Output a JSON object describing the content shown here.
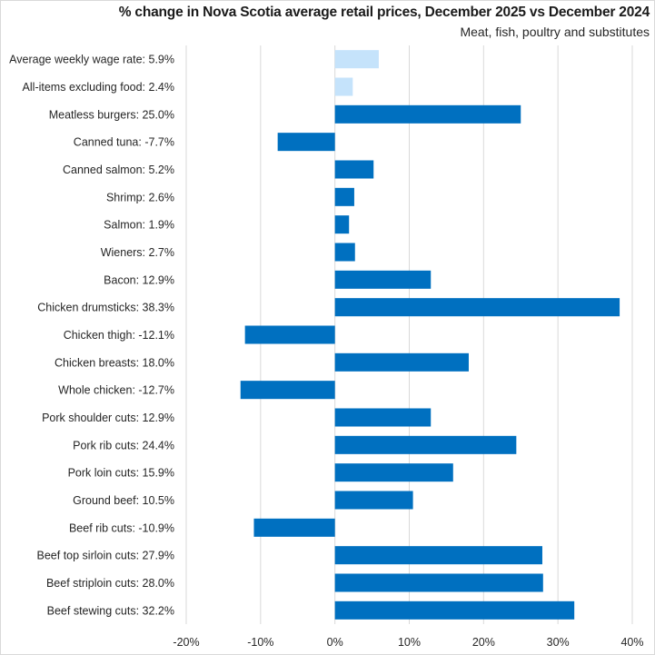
{
  "chart_data": {
    "type": "bar",
    "orientation": "horizontal",
    "title": "% change in Nova Scotia average retail prices, December 2025 vs December 2024",
    "subtitle": "Meat, fish, poultry and substitutes",
    "xlabel": "",
    "ylabel": "",
    "xlim": [
      -20,
      40
    ],
    "xticks": [
      -20,
      -10,
      0,
      10,
      20,
      30,
      40
    ],
    "xtick_labels": [
      "-20%",
      "-10%",
      "0%",
      "10%",
      "20%",
      "30%",
      "40%"
    ],
    "grid": "vertical",
    "legend": "none",
    "colors": {
      "reference": "#c5e3fb",
      "item": "#0070c0",
      "grid": "#d9d9d9"
    },
    "categories": [
      "Average weekly wage rate: 5.9%",
      "All-items excluding food: 2.4%",
      "Meatless burgers: 25.0%",
      "Canned tuna: -7.7%",
      "Canned salmon: 5.2%",
      "Shrimp: 2.6%",
      "Salmon: 1.9%",
      "Wieners: 2.7%",
      "Bacon: 12.9%",
      "Chicken drumsticks: 38.3%",
      "Chicken thigh: -12.1%",
      "Chicken breasts: 18.0%",
      "Whole chicken: -12.7%",
      "Pork shoulder cuts: 12.9%",
      "Pork rib cuts: 24.4%",
      "Pork loin cuts: 15.9%",
      "Ground beef: 10.5%",
      "Beef rib cuts: -10.9%",
      "Beef top sirloin cuts: 27.9%",
      "Beef striploin cuts: 28.0%",
      "Beef stewing cuts: 32.2%"
    ],
    "values": [
      5.9,
      2.4,
      25.0,
      -7.7,
      5.2,
      2.6,
      1.9,
      2.7,
      12.9,
      38.3,
      -12.1,
      18.0,
      -12.7,
      12.9,
      24.4,
      15.9,
      10.5,
      -10.9,
      27.9,
      28.0,
      32.2
    ],
    "series_kind": [
      "reference",
      "reference",
      "item",
      "item",
      "item",
      "item",
      "item",
      "item",
      "item",
      "item",
      "item",
      "item",
      "item",
      "item",
      "item",
      "item",
      "item",
      "item",
      "item",
      "item",
      "item"
    ]
  }
}
